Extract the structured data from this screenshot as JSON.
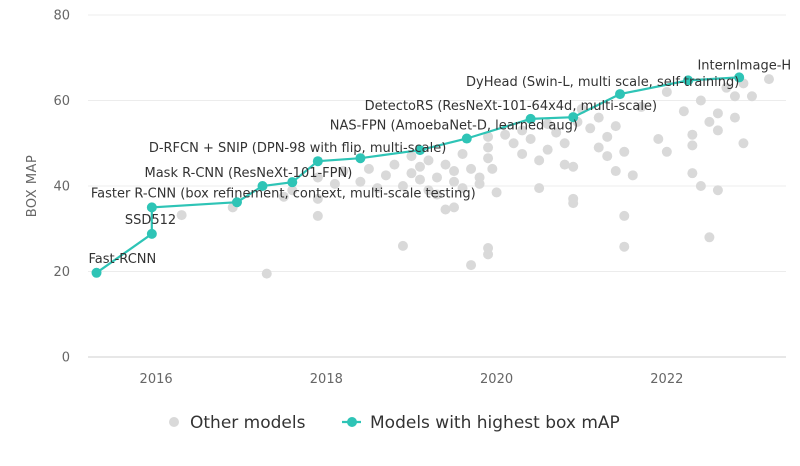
{
  "chart_data": {
    "type": "scatter",
    "title": "",
    "xlabel": "",
    "ylabel": "BOX MAP",
    "xlim": [
      2015.2,
      2023.4
    ],
    "ylim": [
      0,
      80
    ],
    "x_ticks": [
      2016,
      2018,
      2020,
      2022
    ],
    "y_ticks": [
      0,
      20,
      40,
      60,
      80
    ],
    "grid": "horizontal",
    "legend_position": "bottom",
    "colors": {
      "other": "#d9d9d9",
      "best": "#2ec4b6"
    },
    "legend": [
      {
        "label": "Other models",
        "marker": "circle"
      },
      {
        "label": "Models with highest box mAP",
        "marker": "line-circle"
      }
    ],
    "series": [
      {
        "name": "Other models",
        "points": [
          [
            2016.3,
            33.2
          ],
          [
            2016.9,
            35.0
          ],
          [
            2017.3,
            19.5
          ],
          [
            2017.5,
            37.5
          ],
          [
            2017.6,
            39.0
          ],
          [
            2017.9,
            33.0
          ],
          [
            2017.9,
            37.0
          ],
          [
            2017.9,
            42.0
          ],
          [
            2018.1,
            40.5
          ],
          [
            2018.2,
            43.5
          ],
          [
            2018.4,
            41.0
          ],
          [
            2018.5,
            44.0
          ],
          [
            2018.6,
            39.5
          ],
          [
            2018.7,
            42.5
          ],
          [
            2018.8,
            45.0
          ],
          [
            2018.9,
            40.0
          ],
          [
            2018.9,
            26.0
          ],
          [
            2019.0,
            43.0
          ],
          [
            2019.0,
            47.0
          ],
          [
            2019.1,
            41.5
          ],
          [
            2019.1,
            44.5
          ],
          [
            2019.2,
            39.0
          ],
          [
            2019.2,
            46.0
          ],
          [
            2019.3,
            42.0
          ],
          [
            2019.3,
            38.0
          ],
          [
            2019.4,
            45.0
          ],
          [
            2019.4,
            34.5
          ],
          [
            2019.5,
            41.0
          ],
          [
            2019.5,
            43.5
          ],
          [
            2019.5,
            35.0
          ],
          [
            2019.6,
            47.5
          ],
          [
            2019.6,
            39.5
          ],
          [
            2019.7,
            21.5
          ],
          [
            2019.7,
            44.0
          ],
          [
            2019.8,
            42.0
          ],
          [
            2019.8,
            40.5
          ],
          [
            2019.9,
            46.5
          ],
          [
            2019.9,
            49.0
          ],
          [
            2019.9,
            25.5
          ],
          [
            2019.9,
            24.0
          ],
          [
            2019.9,
            51.5
          ],
          [
            2019.95,
            44.0
          ],
          [
            2020.0,
            38.5
          ],
          [
            2020.1,
            52.0
          ],
          [
            2020.2,
            50.0
          ],
          [
            2020.3,
            47.5
          ],
          [
            2020.3,
            53.0
          ],
          [
            2020.4,
            51.0
          ],
          [
            2020.5,
            46.0
          ],
          [
            2020.5,
            39.5
          ],
          [
            2020.6,
            54.5
          ],
          [
            2020.6,
            48.5
          ],
          [
            2020.7,
            52.5
          ],
          [
            2020.8,
            45.0
          ],
          [
            2020.8,
            50.0
          ],
          [
            2020.9,
            44.5
          ],
          [
            2020.9,
            37.0
          ],
          [
            2020.9,
            36.0
          ],
          [
            2020.95,
            55.0
          ],
          [
            2021.0,
            58.0
          ],
          [
            2021.1,
            53.5
          ],
          [
            2021.2,
            56.0
          ],
          [
            2021.2,
            49.0
          ],
          [
            2021.3,
            47.0
          ],
          [
            2021.3,
            51.5
          ],
          [
            2021.4,
            54.0
          ],
          [
            2021.4,
            43.5
          ],
          [
            2021.5,
            48.0
          ],
          [
            2021.5,
            33.0
          ],
          [
            2021.5,
            25.8
          ],
          [
            2021.6,
            42.5
          ],
          [
            2021.7,
            58.5
          ],
          [
            2021.9,
            51.0
          ],
          [
            2022.0,
            48.0
          ],
          [
            2022.0,
            62.0
          ],
          [
            2022.2,
            57.5
          ],
          [
            2022.3,
            52.0
          ],
          [
            2022.3,
            43.0
          ],
          [
            2022.3,
            49.5
          ],
          [
            2022.4,
            60.0
          ],
          [
            2022.4,
            40.0
          ],
          [
            2022.5,
            55.0
          ],
          [
            2022.5,
            28.0
          ],
          [
            2022.6,
            39.0
          ],
          [
            2022.6,
            53.0
          ],
          [
            2022.6,
            57.0
          ],
          [
            2022.7,
            63.0
          ],
          [
            2022.8,
            56.0
          ],
          [
            2022.8,
            61.0
          ],
          [
            2022.9,
            50.0
          ],
          [
            2022.9,
            64.0
          ],
          [
            2023.0,
            61.0
          ],
          [
            2023.2,
            65.0
          ]
        ]
      },
      {
        "name": "Models with highest box mAP",
        "points": [
          [
            2015.3,
            19.7
          ],
          [
            2015.95,
            28.8
          ],
          [
            2015.95,
            35.0
          ],
          [
            2016.95,
            36.2
          ],
          [
            2017.25,
            40.0
          ],
          [
            2017.6,
            40.9
          ],
          [
            2017.9,
            45.8
          ],
          [
            2018.4,
            46.5
          ],
          [
            2019.1,
            48.4
          ],
          [
            2019.65,
            51.1
          ],
          [
            2020.4,
            55.7
          ],
          [
            2020.9,
            56.1
          ],
          [
            2021.45,
            61.5
          ],
          [
            2022.25,
            64.7
          ],
          [
            2022.85,
            65.4
          ]
        ]
      }
    ],
    "annotations": [
      {
        "text": "Fast-RCNN",
        "x": 2015.3,
        "y": 19.7
      },
      {
        "text": "SSD512",
        "x": 2015.95,
        "y": 28.8
      },
      {
        "text": "Faster R-CNN (box refinement, context, multi-scale testing)",
        "x": 2015.95,
        "y": 35.0
      },
      {
        "text": "Mask R-CNN (ResNeXt-101-FPN)",
        "x": 2017.25,
        "y": 40.0
      },
      {
        "text": "D-RFCN + SNIP (DPN-98 with flip, multi-scale)",
        "x": 2017.9,
        "y": 45.8
      },
      {
        "text": "NAS-FPN (AmoebaNet-D, learned aug)",
        "x": 2019.65,
        "y": 51.1
      },
      {
        "text": "DetectoRS (ResNeXt-101-64x4d, multi-scale)",
        "x": 2020.4,
        "y": 55.7
      },
      {
        "text": "DyHead (Swin-L, multi scale, self-training)",
        "x": 2021.45,
        "y": 61.5
      },
      {
        "text": "InternImage-H",
        "x": 2022.85,
        "y": 65.4
      }
    ]
  }
}
